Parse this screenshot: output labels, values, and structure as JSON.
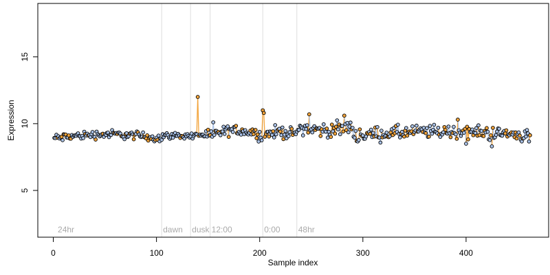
{
  "chart_data": {
    "type": "scatter",
    "title": "",
    "xlabel": "Sample index",
    "ylabel": "Expression",
    "xlim": [
      -15,
      480
    ],
    "ylim": [
      1.5,
      19
    ],
    "x_ticks": [
      0,
      100,
      200,
      300,
      400
    ],
    "y_ticks": [
      5,
      10,
      15
    ],
    "grid": false,
    "colors": {
      "point_stroke": "#000000",
      "blue_fill": "#a9c1e6",
      "orange_fill": "#f2a33a",
      "guide_line": "#dddddd",
      "annotation_text": "#aaaaaa"
    },
    "annotations": [
      {
        "x": 3,
        "label": "24hr",
        "line": false
      },
      {
        "x": 105,
        "label": "dawn",
        "line": true
      },
      {
        "x": 133,
        "label": "dusk",
        "line": true
      },
      {
        "x": 152,
        "label": "12:00",
        "line": true
      },
      {
        "x": 203,
        "label": "0:00",
        "line": true
      },
      {
        "x": 236,
        "label": "48hr",
        "line": true
      }
    ],
    "segments": [
      {
        "x_start": 1,
        "x_end": 105,
        "baseline": 8.9,
        "trend": 0.3,
        "noise": 0.28,
        "orange_share": 0.25
      },
      {
        "x_start": 106,
        "x_end": 133,
        "baseline": 9.1,
        "trend": 0.0,
        "noise": 0.2,
        "orange_share": 0.15
      },
      {
        "x_start": 134,
        "x_end": 152,
        "baseline": 9.0,
        "trend": 0.2,
        "noise": 0.3,
        "orange_share": 0.3
      },
      {
        "x_start": 153,
        "x_end": 203,
        "baseline": 9.1,
        "trend": 0.4,
        "noise": 0.35,
        "orange_share": 0.2
      },
      {
        "x_start": 204,
        "x_end": 236,
        "baseline": 9.1,
        "trend": 0.3,
        "noise": 0.4,
        "orange_share": 0.25
      },
      {
        "x_start": 237,
        "x_end": 290,
        "baseline": 9.8,
        "trend": -0.3,
        "noise": 0.45,
        "orange_share": 0.4
      },
      {
        "x_start": 291,
        "x_end": 462,
        "baseline": 9.1,
        "trend": 0.3,
        "noise": 0.45,
        "orange_share": 0.3
      }
    ],
    "highlighted_points": [
      {
        "x": 140,
        "y": 12.0,
        "color": "orange"
      },
      {
        "x": 203,
        "y": 11.0,
        "color": "orange"
      },
      {
        "x": 204,
        "y": 10.8,
        "color": "orange"
      },
      {
        "x": 155,
        "y": 10.1,
        "color": "blue"
      },
      {
        "x": 248,
        "y": 10.7,
        "color": "orange"
      },
      {
        "x": 282,
        "y": 10.6,
        "color": "orange"
      },
      {
        "x": 392,
        "y": 10.3,
        "color": "orange"
      },
      {
        "x": 400,
        "y": 8.5,
        "color": "blue"
      },
      {
        "x": 425,
        "y": 8.3,
        "color": "blue"
      }
    ]
  }
}
